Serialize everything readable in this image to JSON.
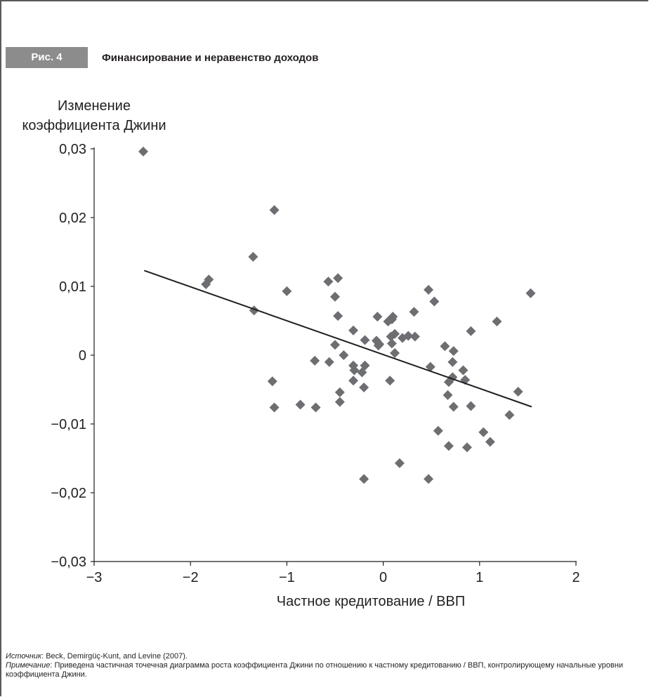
{
  "figure": {
    "badge": "Рис. 4",
    "title": "Финансирование и неравенство доходов"
  },
  "notes": {
    "source_label": "Источник",
    "source_text": ": Beck, Demirgüç-Kunt, and Levine (2007).",
    "note_label": "Примечание",
    "note_text": ": Приведена частичная точечная диаграмма роста коэффициента Джини по отношению к частному кредитованию / ВВП, контролирующему начальные уровни коэффициента Джини."
  },
  "colors": {
    "points": "#6d6e71",
    "badge": "#8c8c8c",
    "frame": "#5a5a5a",
    "text": "#231f20"
  },
  "chart_data": {
    "type": "scatter",
    "title": "Финансирование и неравенство доходов",
    "ylabel_lines": [
      "Изменение",
      "коэффициента Джини"
    ],
    "xlabel": "Частное кредитование / ВВП",
    "xlim": [
      -3,
      2
    ],
    "ylim": [
      -0.03,
      0.03
    ],
    "x_ticks": [
      -3,
      -2,
      -1,
      0,
      1,
      2
    ],
    "x_tick_labels": [
      "−3",
      "−2",
      "−1",
      "0",
      "1",
      "2"
    ],
    "y_ticks": [
      0.03,
      0.02,
      0.01,
      0,
      -0.01,
      -0.02,
      -0.03
    ],
    "y_tick_labels": [
      "0,03",
      "0,02",
      "0,01",
      "0",
      "−0,01",
      "−0,02",
      "−0,03"
    ],
    "grid": false,
    "trendline": {
      "x": [
        -2.48,
        1.54
      ],
      "y": [
        0.0123,
        -0.0075
      ]
    },
    "points": [
      [
        -2.49,
        0.0296
      ],
      [
        -1.13,
        0.0211
      ],
      [
        -1.35,
        0.0143
      ],
      [
        -1.84,
        0.0103
      ],
      [
        -1.81,
        0.011
      ],
      [
        -1.34,
        0.0065
      ],
      [
        -1.0,
        0.0093
      ],
      [
        -0.57,
        0.0107
      ],
      [
        -0.47,
        0.0112
      ],
      [
        -0.5,
        0.0085
      ],
      [
        -0.47,
        0.0057
      ],
      [
        -0.31,
        0.0036
      ],
      [
        -0.5,
        0.0015
      ],
      [
        -0.41,
        0.0
      ],
      [
        -0.56,
        -0.001
      ],
      [
        -0.71,
        -0.0008
      ],
      [
        -0.31,
        -0.0015
      ],
      [
        -0.3,
        -0.0022
      ],
      [
        -0.31,
        -0.0037
      ],
      [
        -0.22,
        -0.0025
      ],
      [
        -0.19,
        -0.0015
      ],
      [
        -0.19,
        0.0022
      ],
      [
        -0.06,
        0.0056
      ],
      [
        -0.05,
        0.0014
      ],
      [
        -0.07,
        0.0021
      ],
      [
        -0.04,
        0.0016
      ],
      [
        0.05,
        0.0049
      ],
      [
        0.09,
        0.0052
      ],
      [
        0.1,
        0.0056
      ],
      [
        0.08,
        0.0027
      ],
      [
        0.09,
        0.0017
      ],
      [
        0.12,
        0.0031
      ],
      [
        0.12,
        0.0003
      ],
      [
        0.2,
        0.0025
      ],
      [
        0.26,
        0.0028
      ],
      [
        0.33,
        0.0027
      ],
      [
        0.32,
        0.0063
      ],
      [
        0.47,
        0.0095
      ],
      [
        0.53,
        0.0078
      ],
      [
        0.49,
        -0.0017
      ],
      [
        0.07,
        -0.0037
      ],
      [
        -0.45,
        -0.0054
      ],
      [
        -0.2,
        -0.0047
      ],
      [
        -0.45,
        -0.0068
      ],
      [
        -1.15,
        -0.0038
      ],
      [
        -1.13,
        -0.0076
      ],
      [
        -0.86,
        -0.0072
      ],
      [
        -0.7,
        -0.0076
      ],
      [
        0.64,
        0.0013
      ],
      [
        0.73,
        0.0006
      ],
      [
        0.72,
        -0.001
      ],
      [
        0.72,
        -0.0032
      ],
      [
        0.68,
        -0.0039
      ],
      [
        0.67,
        -0.0058
      ],
      [
        0.83,
        -0.0022
      ],
      [
        0.85,
        -0.0036
      ],
      [
        0.91,
        0.0035
      ],
      [
        1.18,
        0.0049
      ],
      [
        0.73,
        -0.0075
      ],
      [
        0.91,
        -0.0074
      ],
      [
        0.57,
        -0.011
      ],
      [
        0.68,
        -0.0132
      ],
      [
        0.87,
        -0.0134
      ],
      [
        1.04,
        -0.0112
      ],
      [
        1.11,
        -0.0126
      ],
      [
        1.31,
        -0.0087
      ],
      [
        1.4,
        -0.0053
      ],
      [
        1.53,
        0.009
      ],
      [
        0.17,
        -0.0157
      ],
      [
        -0.2,
        -0.018
      ],
      [
        0.47,
        -0.018
      ]
    ]
  }
}
